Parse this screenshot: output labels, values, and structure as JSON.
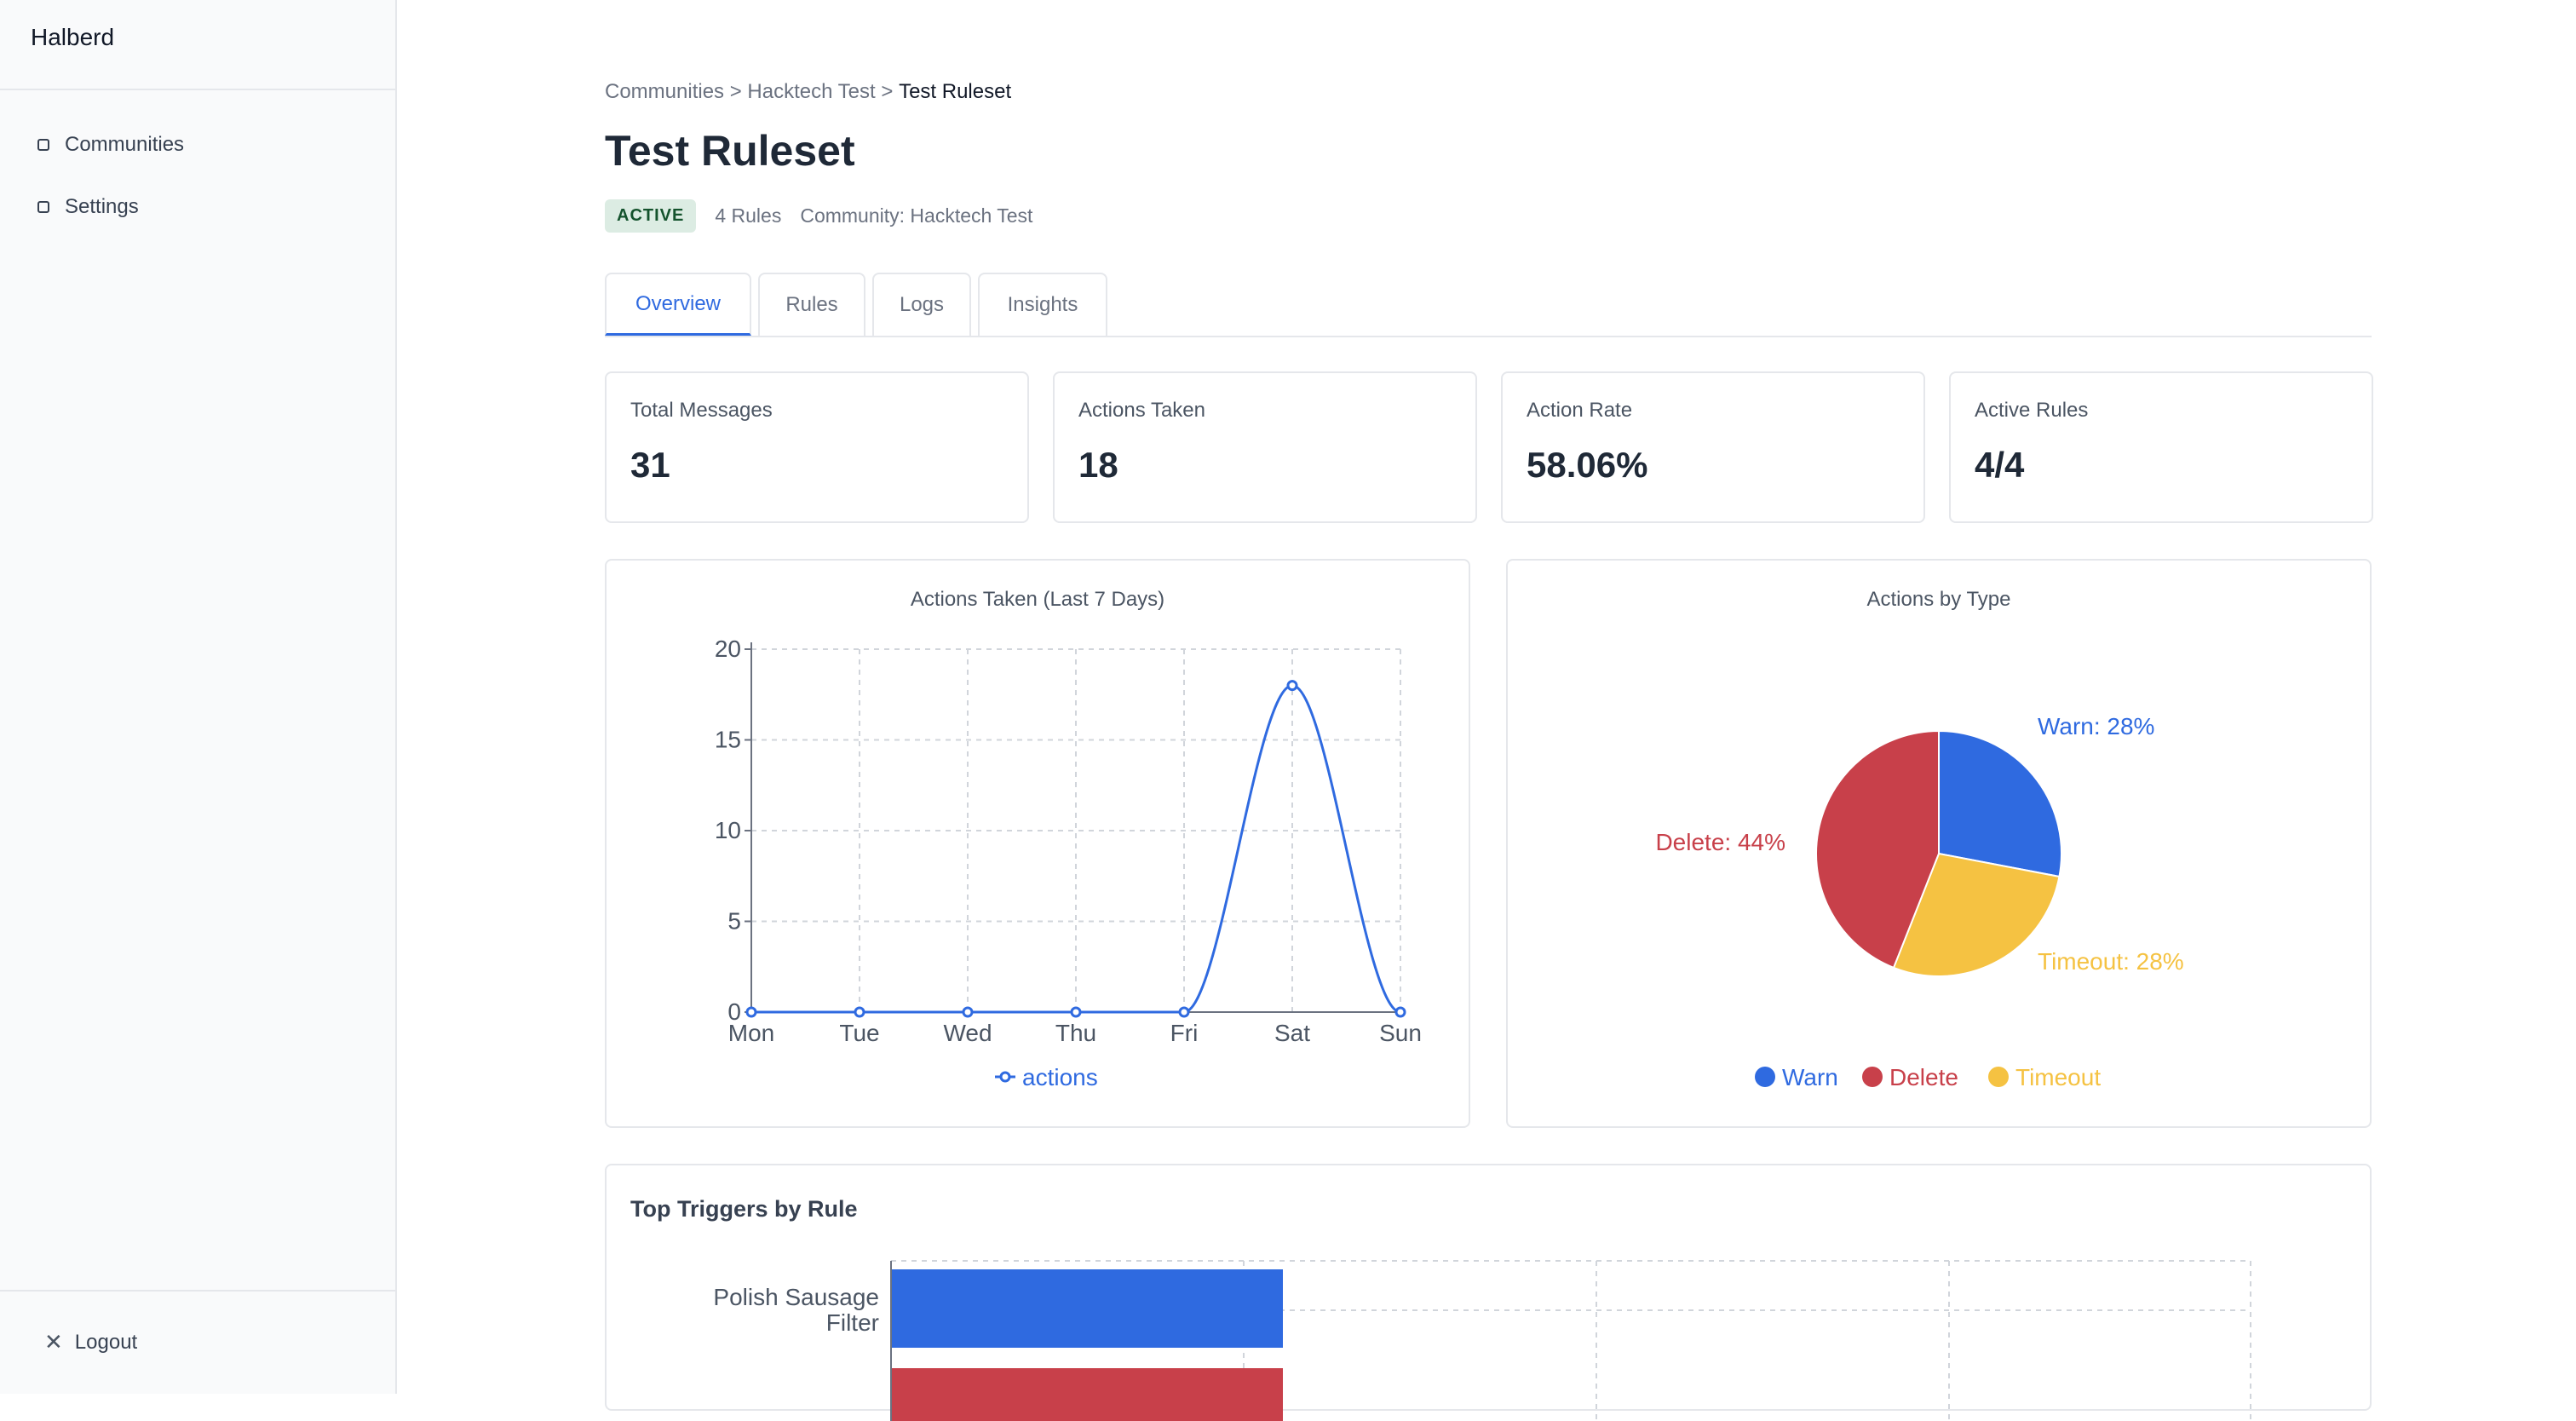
{
  "app": {
    "brand": "Halberd"
  },
  "sidebar": {
    "items": [
      {
        "label": "Communities"
      },
      {
        "label": "Settings"
      }
    ],
    "logout_label": "Logout"
  },
  "breadcrumb": {
    "communities": "Communities",
    "sep1": " > ",
    "community": "Hacktech Test",
    "sep2": " > ",
    "current": "Test Ruleset"
  },
  "page": {
    "title": "Test Ruleset",
    "status": "ACTIVE",
    "rule_count": "4 Rules",
    "community": "Community: Hacktech Test"
  },
  "tabs": [
    {
      "label": "Overview"
    },
    {
      "label": "Rules"
    },
    {
      "label": "Logs"
    },
    {
      "label": "Insights"
    }
  ],
  "stats": [
    {
      "label": "Total Messages",
      "value": "31"
    },
    {
      "label": "Actions Taken",
      "value": "18"
    },
    {
      "label": "Action Rate",
      "value": "58.06%"
    },
    {
      "label": "Active Rules",
      "value": "4/4"
    }
  ],
  "colors": {
    "blue": "#2f6ae0",
    "red": "#c8404a",
    "yellow": "#f5c242",
    "accent": "#2f6ae0"
  },
  "chart_data": [
    {
      "type": "line",
      "title": "Actions Taken (Last 7 Days)",
      "categories": [
        "Mon",
        "Tue",
        "Wed",
        "Thu",
        "Fri",
        "Sat",
        "Sun"
      ],
      "series": [
        {
          "name": "actions",
          "values": [
            0,
            0,
            0,
            0,
            0,
            18,
            0
          ],
          "color": "#2f6ae0"
        }
      ],
      "ylim": [
        0,
        20
      ],
      "yticks": [
        0,
        5,
        10,
        15,
        20
      ],
      "grid": true,
      "legend": "bottom"
    },
    {
      "type": "pie",
      "title": "Actions by Type",
      "slices": [
        {
          "name": "Warn",
          "value": 28,
          "label": "Warn: 28%",
          "color": "#2f6ae0"
        },
        {
          "name": "Timeout",
          "value": 28,
          "label": "Timeout: 28%",
          "color": "#f5c242"
        },
        {
          "name": "Delete",
          "value": 44,
          "label": "Delete: 44%",
          "color": "#c8404a"
        }
      ],
      "legend": "bottom"
    },
    {
      "type": "bar",
      "title": "Top Triggers by Rule",
      "categories": [
        "Polish Sausage Filter"
      ],
      "visible_category_lines": [
        "Polish Sausage",
        "Filter"
      ],
      "grid": true
    }
  ]
}
